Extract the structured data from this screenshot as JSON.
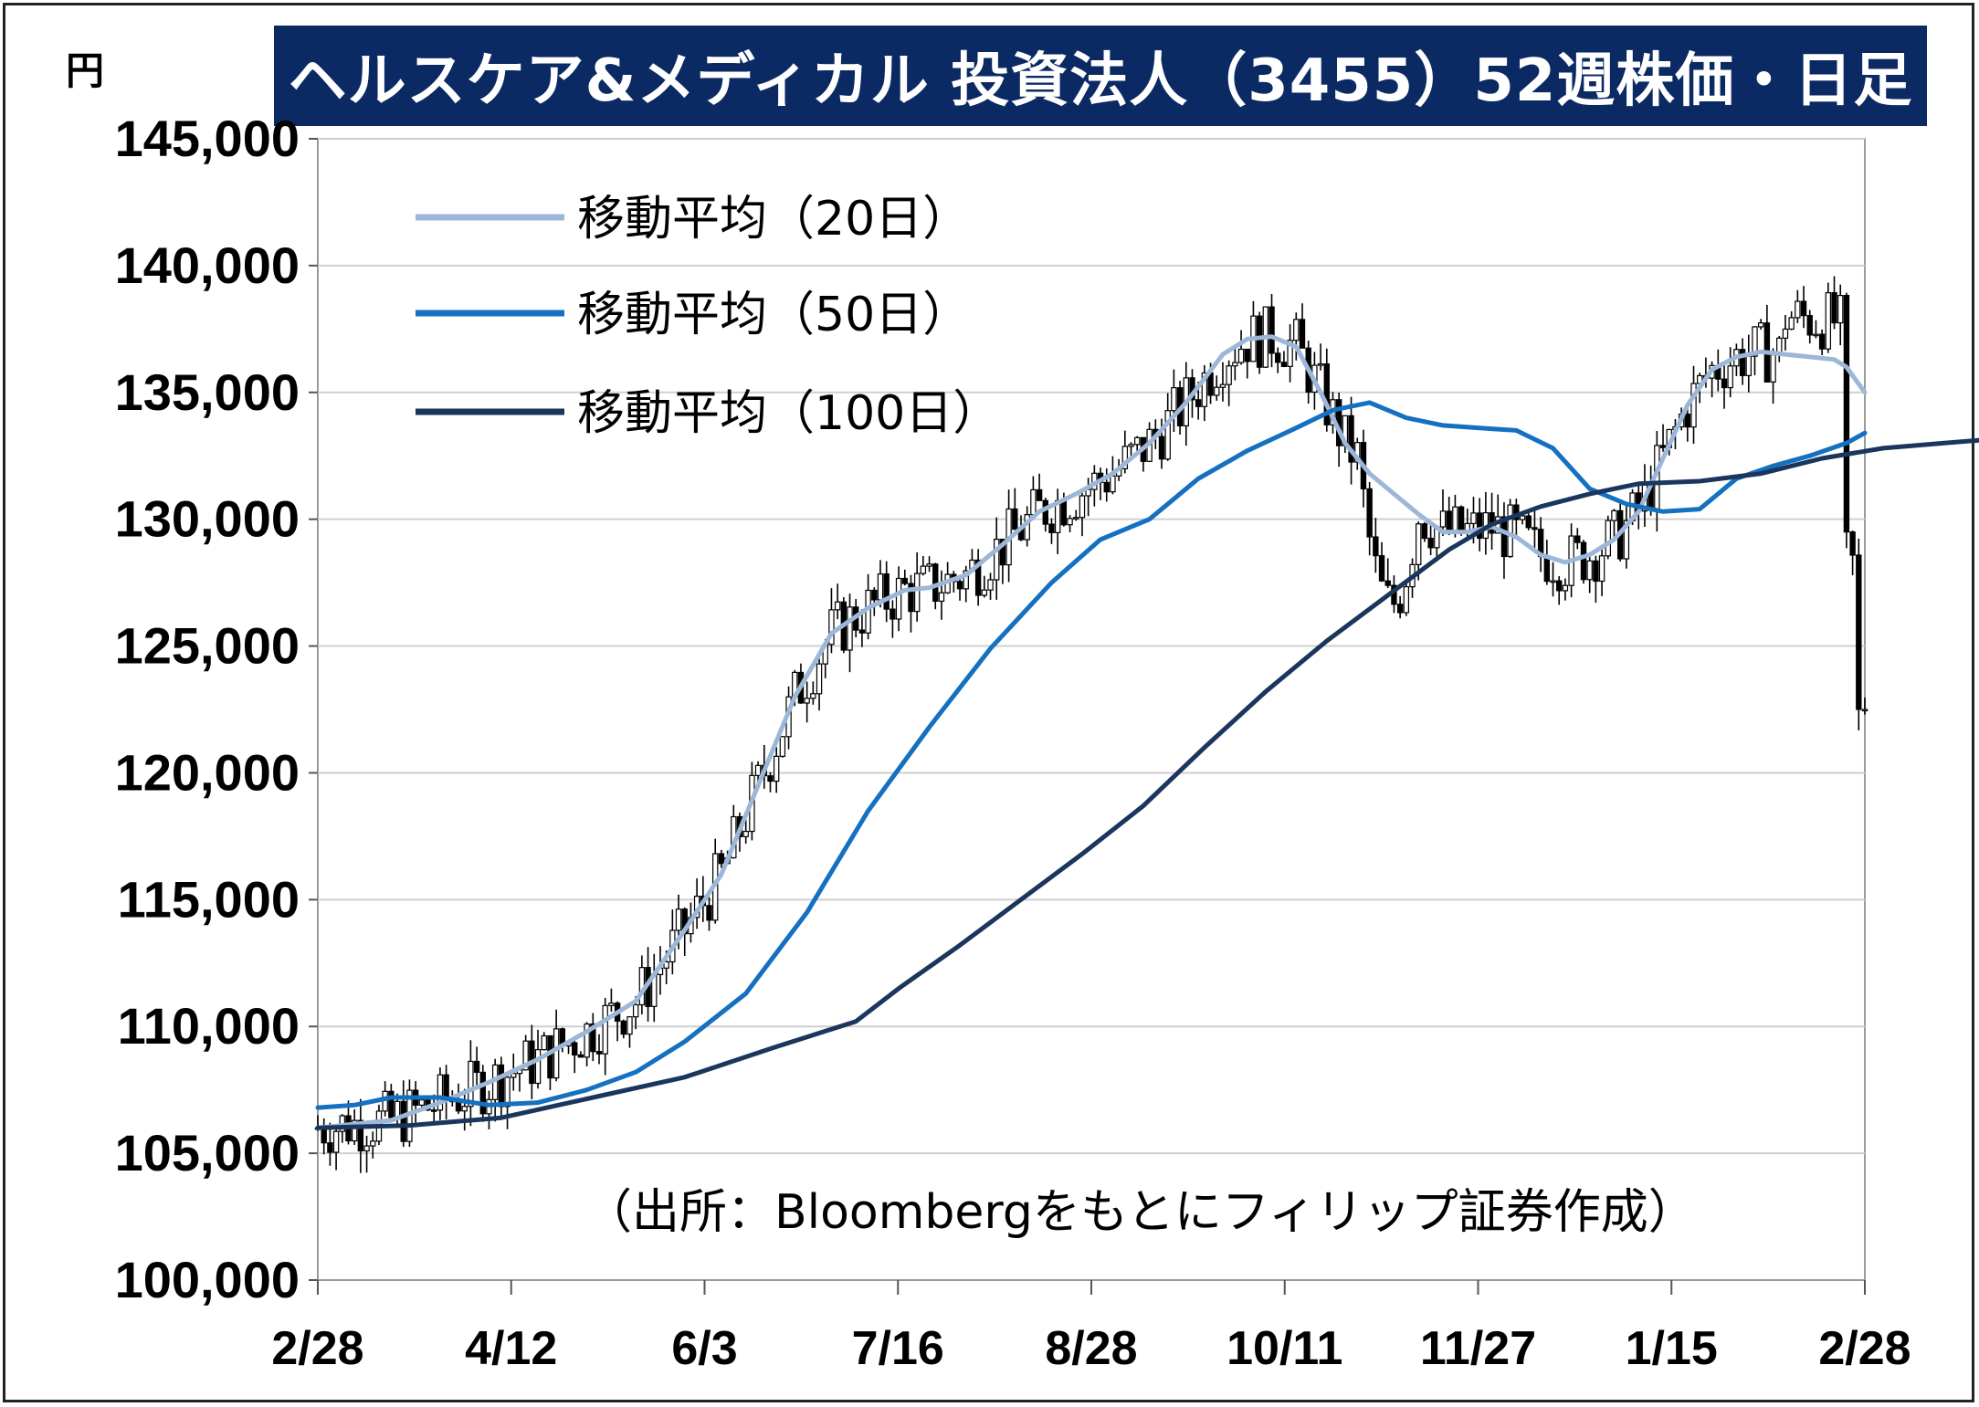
{
  "title": "ヘルスケア&メディカル 投資法人（3455）52週株価・日足",
  "y_unit": "円",
  "source_note": "（出所：Bloombergをもとにフィリップ証券作成）",
  "colors": {
    "title_bg": "#0b2a63",
    "ma20": "#9db7d9",
    "ma50": "#1470c0",
    "ma100": "#1b365d",
    "candle": "#000000"
  },
  "chart_data": {
    "type": "candlestick",
    "ylim": [
      100000,
      145000
    ],
    "y_ticks": [
      "100,000",
      "105,000",
      "110,000",
      "115,000",
      "120,000",
      "125,000",
      "130,000",
      "135,000",
      "140,000",
      "145,000"
    ],
    "x_ticks": [
      "2/28",
      "4/12",
      "6/3",
      "7/16",
      "8/28",
      "10/11",
      "11/27",
      "1/15",
      "2/28"
    ],
    "grid": true,
    "legend_position": "top-left",
    "series": [
      {
        "name": "移動平均（20日）",
        "key": "ma20",
        "points": [
          [
            0,
            106000
          ],
          [
            12,
            106300
          ],
          [
            20,
            107000
          ],
          [
            28,
            107800
          ],
          [
            36,
            108700
          ],
          [
            44,
            109800
          ],
          [
            52,
            111000
          ],
          [
            60,
            113800
          ],
          [
            66,
            116000
          ],
          [
            72,
            119500
          ],
          [
            78,
            123000
          ],
          [
            84,
            125500
          ],
          [
            90,
            126500
          ],
          [
            96,
            127200
          ],
          [
            100,
            127300
          ],
          [
            106,
            127800
          ],
          [
            112,
            129000
          ],
          [
            118,
            130300
          ],
          [
            124,
            131000
          ],
          [
            130,
            131800
          ],
          [
            136,
            133000
          ],
          [
            142,
            134600
          ],
          [
            148,
            136500
          ],
          [
            152,
            137100
          ],
          [
            156,
            137200
          ],
          [
            160,
            136800
          ],
          [
            164,
            135000
          ],
          [
            168,
            133000
          ],
          [
            172,
            131800
          ],
          [
            176,
            131000
          ],
          [
            180,
            130200
          ],
          [
            184,
            129500
          ],
          [
            188,
            129500
          ],
          [
            192,
            129700
          ],
          [
            196,
            129300
          ],
          [
            200,
            128600
          ],
          [
            204,
            128300
          ],
          [
            208,
            128600
          ],
          [
            212,
            129200
          ],
          [
            216,
            130300
          ],
          [
            220,
            132400
          ],
          [
            224,
            134500
          ],
          [
            228,
            135900
          ],
          [
            232,
            136400
          ],
          [
            236,
            136600
          ],
          [
            240,
            136500
          ],
          [
            244,
            136400
          ],
          [
            248,
            136300
          ],
          [
            250,
            136000
          ],
          [
            253,
            135000
          ]
        ]
      },
      {
        "name": "移動平均（50日）",
        "key": "ma50",
        "points": [
          [
            0,
            106800
          ],
          [
            6,
            106900
          ],
          [
            12,
            107200
          ],
          [
            20,
            107200
          ],
          [
            28,
            106900
          ],
          [
            36,
            107000
          ],
          [
            44,
            107500
          ],
          [
            52,
            108200
          ],
          [
            60,
            109400
          ],
          [
            70,
            111300
          ],
          [
            80,
            114500
          ],
          [
            90,
            118500
          ],
          [
            100,
            121800
          ],
          [
            110,
            124900
          ],
          [
            120,
            127500
          ],
          [
            128,
            129200
          ],
          [
            136,
            130000
          ],
          [
            144,
            131600
          ],
          [
            152,
            132700
          ],
          [
            160,
            133600
          ],
          [
            166,
            134300
          ],
          [
            172,
            134600
          ],
          [
            178,
            134000
          ],
          [
            184,
            133700
          ],
          [
            190,
            133600
          ],
          [
            196,
            133500
          ],
          [
            202,
            132800
          ],
          [
            208,
            131200
          ],
          [
            214,
            130600
          ],
          [
            220,
            130300
          ],
          [
            226,
            130400
          ],
          [
            232,
            131600
          ],
          [
            238,
            132100
          ],
          [
            244,
            132500
          ],
          [
            250,
            133000
          ],
          [
            253,
            133400
          ]
        ]
      },
      {
        "name": "移動平均（100日）",
        "key": "ma100",
        "points": [
          [
            0,
            106000
          ],
          [
            15,
            106100
          ],
          [
            30,
            106400
          ],
          [
            45,
            107200
          ],
          [
            60,
            108000
          ],
          [
            75,
            109200
          ],
          [
            88,
            110200
          ],
          [
            95,
            111500
          ],
          [
            105,
            113200
          ],
          [
            115,
            115000
          ],
          [
            125,
            116800
          ],
          [
            135,
            118700
          ],
          [
            145,
            121000
          ],
          [
            155,
            123200
          ],
          [
            165,
            125200
          ],
          [
            175,
            127000
          ],
          [
            185,
            128800
          ],
          [
            192,
            129800
          ],
          [
            200,
            130500
          ],
          [
            208,
            131000
          ],
          [
            216,
            131400
          ],
          [
            226,
            131500
          ],
          [
            236,
            131800
          ],
          [
            246,
            132400
          ],
          [
            256,
            132800
          ],
          [
            266,
            133000
          ],
          [
            276,
            133200
          ],
          [
            285,
            133400
          ]
        ]
      }
    ]
  }
}
